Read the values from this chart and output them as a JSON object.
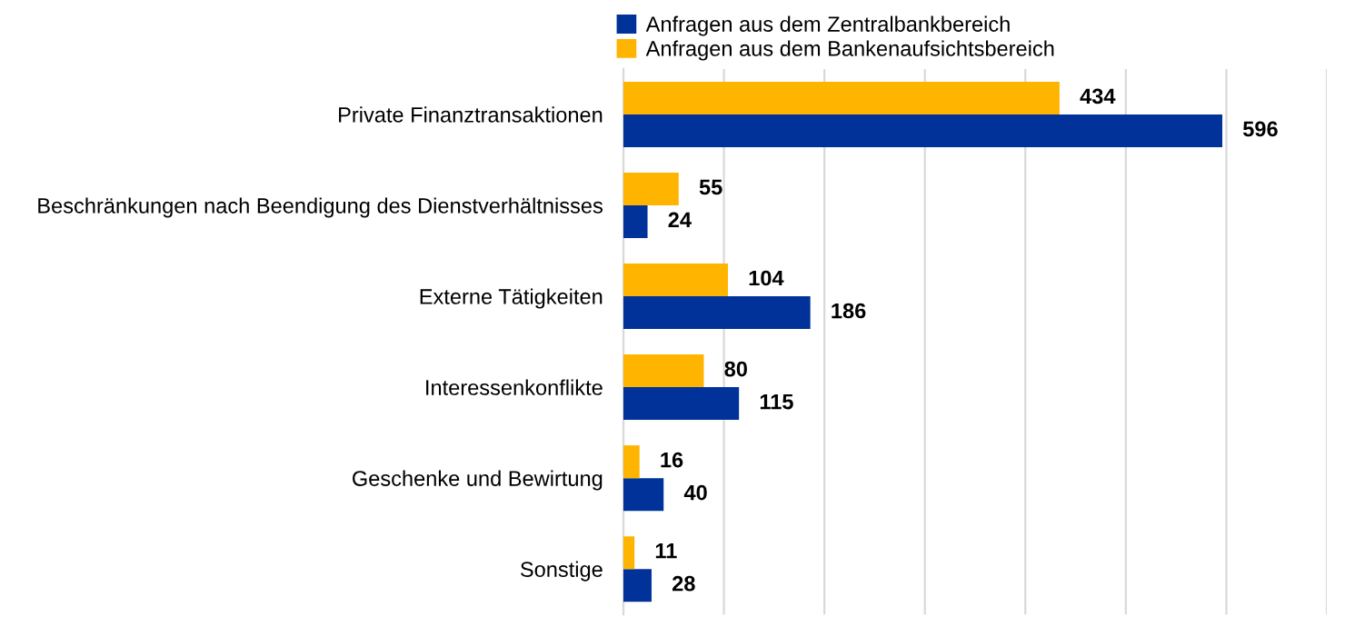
{
  "chart_data": {
    "type": "bar",
    "orientation": "horizontal",
    "categories": [
      "Private Finanztransaktionen",
      "Beschränkungen nach Beendigung des Dienstverhältnisses",
      "Externe Tätigkeiten",
      "Interessenkonflikte",
      "Geschenke und Bewirtung",
      "Sonstige"
    ],
    "series": [
      {
        "name": "Anfragen aus dem Zentralbankbereich",
        "color": "#003299",
        "values": [
          596,
          24,
          186,
          115,
          40,
          28
        ]
      },
      {
        "name": "Anfragen aus dem Bankenaufsichtsbereich",
        "color": "#ffb400",
        "values": [
          434,
          55,
          104,
          80,
          16,
          11
        ]
      }
    ],
    "xlim": [
      0,
      700
    ],
    "xticks": [
      {
        "value": 0,
        "label": null
      },
      {
        "value": 100,
        "label": null
      },
      {
        "value": 200,
        "label": null
      },
      {
        "value": 300,
        "label": null
      },
      {
        "value": 400,
        "label": null
      },
      {
        "value": 500,
        "label": null
      },
      {
        "value": 600,
        "label": null
      },
      {
        "value": 700,
        "label": null
      }
    ],
    "tick_labels": "y",
    "grid": "x",
    "legend": "top",
    "data_labels": true
  }
}
